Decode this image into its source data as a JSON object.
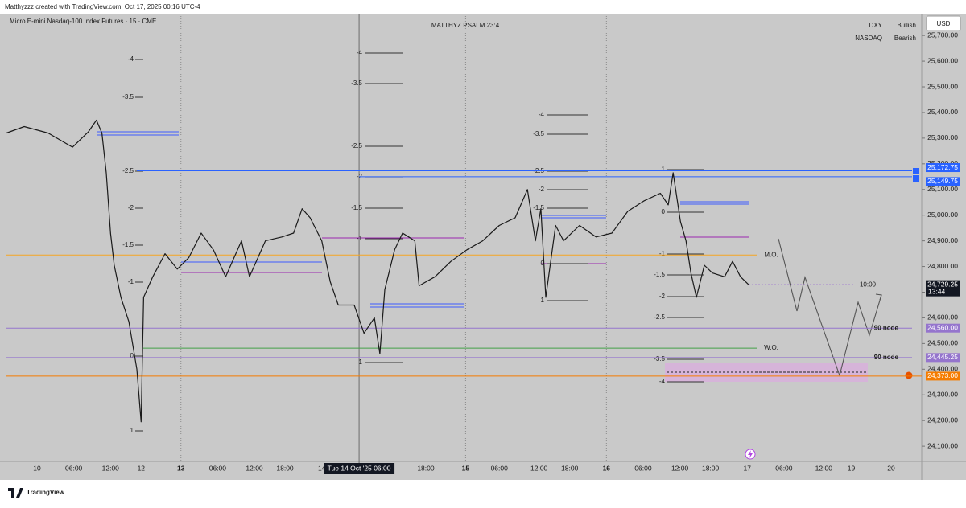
{
  "header": {
    "credit": "Matthyzzz created with TradingView.com, Oct 17, 2025 00:16 UTC-4"
  },
  "chart_data": {
    "type": "line",
    "symbol": "Micro E-mini Nasdaq-100 Index Futures · 15 · CME",
    "title": "MATTHYZ PSALM 23:4",
    "currency": "USD",
    "color": "#1a1a1a",
    "x": [
      -5,
      -2.1,
      1.8,
      5.8,
      8.4,
      9.7,
      10.6,
      11.3,
      12.0,
      12.6,
      13.7,
      15.0,
      16.3,
      17.0,
      17.4,
      18.9,
      20.9,
      22.9,
      24.8,
      26.8,
      28.8,
      30.8,
      33.4,
      34.7,
      37.3,
      40.0,
      41.9,
      43.3,
      44.6,
      46.5,
      47.9,
      49.2,
      51.8,
      53.4,
      55.1,
      56.0,
      56.8,
      58.4,
      59.7,
      61.7,
      62.4,
      65.0,
      67.6,
      70.2,
      72.8,
      75.5,
      78.1,
      80.1,
      81.4,
      82.3,
      83.1,
      84.7,
      86.0,
      88.6,
      91.3,
      93.9,
      96.5,
      99.1,
      101.8,
      103.1,
      103.9,
      105.1,
      106.0,
      106.8,
      107.7,
      109.0,
      110.3,
      112.3,
      113.6,
      114.9,
      116.2
    ],
    "values": [
      25320,
      25345,
      25320,
      25265,
      25325,
      25370,
      25320,
      25165,
      24930,
      24805,
      24680,
      24585,
      24400,
      24195,
      24680,
      24760,
      24850,
      24790,
      24835,
      24930,
      24865,
      24760,
      24900,
      24760,
      24900,
      24915,
      24930,
      25025,
      24990,
      24900,
      24740,
      24650,
      24650,
      24540,
      24600,
      24460,
      24710,
      24865,
      24930,
      24900,
      24725,
      24760,
      24820,
      24865,
      24900,
      24960,
      24990,
      25100,
      24900,
      25025,
      24680,
      24960,
      24900,
      24960,
      24915,
      24930,
      25015,
      25055,
      25085,
      25040,
      25165,
      24975,
      24900,
      24775,
      24680,
      24805,
      24775,
      24760,
      24820,
      24760,
      24730
    ],
    "xlim": [
      -5,
      144.5
    ],
    "xticks": [
      {
        "value": 0,
        "label": "10"
      },
      {
        "value": 6,
        "label": "06:00"
      },
      {
        "value": 12,
        "label": "12:00"
      },
      {
        "value": 17,
        "label": "12"
      },
      {
        "value": 23.5,
        "label": "13"
      },
      {
        "value": 29.5,
        "label": "06:00"
      },
      {
        "value": 35.5,
        "label": "12:00"
      },
      {
        "value": 40.5,
        "label": "18:00"
      },
      {
        "value": 46.5,
        "label": "14"
      },
      {
        "value": 63.5,
        "label": "18:00"
      },
      {
        "value": 70,
        "label": "15"
      },
      {
        "value": 75.5,
        "label": "06:00"
      },
      {
        "value": 82,
        "label": "12:00"
      },
      {
        "value": 87,
        "label": "18:00"
      },
      {
        "value": 93,
        "label": "16"
      },
      {
        "value": 99,
        "label": "06:00"
      },
      {
        "value": 105,
        "label": "12:00"
      },
      {
        "value": 110,
        "label": "18:00"
      },
      {
        "value": 116,
        "label": "17"
      },
      {
        "value": 122,
        "label": "06:00"
      },
      {
        "value": 128.5,
        "label": "12:00"
      },
      {
        "value": 133,
        "label": "19"
      },
      {
        "value": 139.5,
        "label": "20"
      }
    ],
    "ylim": [
      24044,
      25785
    ],
    "yticks": [
      {
        "value": 25700,
        "label": "25,700.00"
      },
      {
        "value": 25600,
        "label": "25,600.00"
      },
      {
        "value": 25500,
        "label": "25,500.00"
      },
      {
        "value": 25400,
        "label": "25,400.00"
      },
      {
        "value": 25300,
        "label": "25,300.00"
      },
      {
        "value": 25200,
        "label": "25,200.00"
      },
      {
        "value": 25100,
        "label": "25,100.00"
      },
      {
        "value": 25000,
        "label": "25,000.00"
      },
      {
        "value": 24900,
        "label": "24,900.00"
      },
      {
        "value": 24800,
        "label": "24,800.00"
      },
      {
        "value": 24700,
        "label": "24,700.00"
      },
      {
        "value": 24600,
        "label": "24,600.00"
      },
      {
        "value": 24500,
        "label": "24,500.00"
      },
      {
        "value": 24400,
        "label": "24,400.00"
      },
      {
        "value": 24300,
        "label": "24,300.00"
      },
      {
        "value": 24200,
        "label": "24,200.00"
      },
      {
        "value": 24100,
        "label": "24,100.00"
      }
    ],
    "crosshair": {
      "value": 52.6,
      "label": "Tue 14 Oct '25  06:00"
    },
    "last_price": {
      "value": 24729.25,
      "label": "24,729.25",
      "countdown": "13:44"
    },
    "levels": [
      {
        "value": 25172.75,
        "label": "25,172.75",
        "color": "#2962ff"
      },
      {
        "value": 25149.75,
        "label": "25,149.75",
        "color": "#2962ff"
      },
      {
        "value": 24560,
        "label": "24,560.00",
        "color": "#9575cd",
        "note": "90 node"
      },
      {
        "value": 24445.25,
        "label": "24,445.25",
        "color": "#9575cd",
        "note": "90 node"
      },
      {
        "value": 24373,
        "label": "24,373.00",
        "color": "#f57c00"
      },
      {
        "value": 24845,
        "color": "#f5a623",
        "note": "M.O."
      },
      {
        "value": 24482,
        "color": "#43a047",
        "note": "W.O."
      }
    ],
    "legend": [
      {
        "name": "DXY",
        "status": "Bullish",
        "color": "#26a65b"
      },
      {
        "name": "NASDAQ",
        "status": "Bearish",
        "color": "#ef5350"
      }
    ]
  },
  "annotations": {
    "fib_ladders": [
      [
        "-4",
        "-3.5",
        "-2.5",
        "-2",
        "-1.5",
        "-1",
        "0",
        "1"
      ],
      [
        "-4",
        "-3.5",
        "-2.5",
        "-2",
        "-1.5",
        "-1",
        "1"
      ],
      [
        "-4",
        "-3.5",
        "-2.5",
        "-2",
        "-1.5",
        "0",
        "1"
      ],
      [
        "1",
        "0",
        "-1",
        "-1.5",
        "-2",
        "-2.5",
        "-3.5",
        "-4"
      ]
    ],
    "projection_time": "10:00"
  },
  "footer": {
    "brand": "TradingView"
  }
}
